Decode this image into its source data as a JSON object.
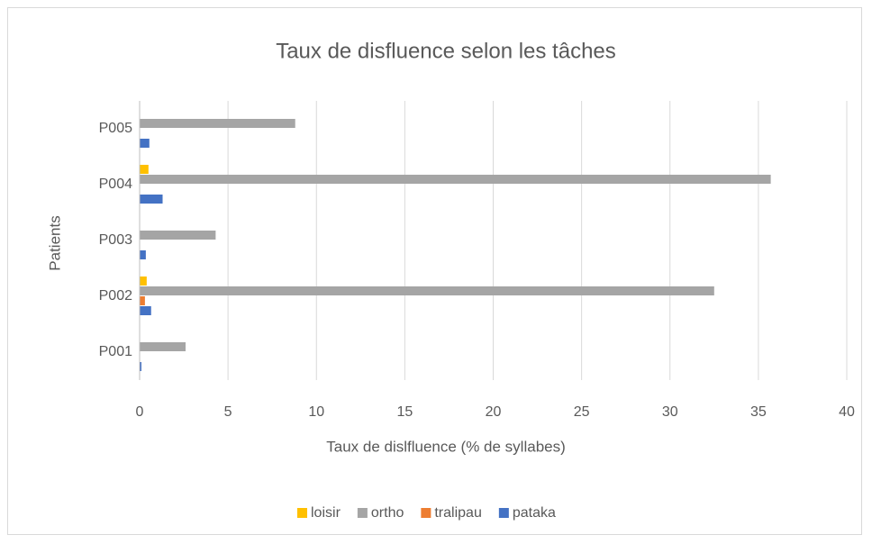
{
  "chart_data": {
    "type": "hbar",
    "title": "Taux de disfluence selon les tâches",
    "x_label": "Taux de dislfluence (% de syllabes)",
    "y_label": "Patients",
    "categories": [
      "P001",
      "P002",
      "P003",
      "P004",
      "P005"
    ],
    "series": [
      {
        "name": "loisir",
        "color": "#FFC000",
        "values": [
          0,
          0.4,
          0,
          0.5,
          0
        ]
      },
      {
        "name": "ortho",
        "color": "#A5A5A5",
        "values": [
          2.6,
          32.5,
          4.3,
          35.7,
          8.8
        ]
      },
      {
        "name": "tralipau",
        "color": "#ED7D31",
        "values": [
          0,
          0.3,
          0,
          0,
          0
        ]
      },
      {
        "name": "pataka",
        "color": "#4472C4",
        "values": [
          0.1,
          0.65,
          0.35,
          1.3,
          0.55
        ]
      }
    ],
    "xlim": [
      0,
      40
    ],
    "xticks": [
      0,
      5,
      10,
      15,
      20,
      25,
      30,
      35,
      40
    ],
    "grid": true,
    "legend": "bottom"
  }
}
